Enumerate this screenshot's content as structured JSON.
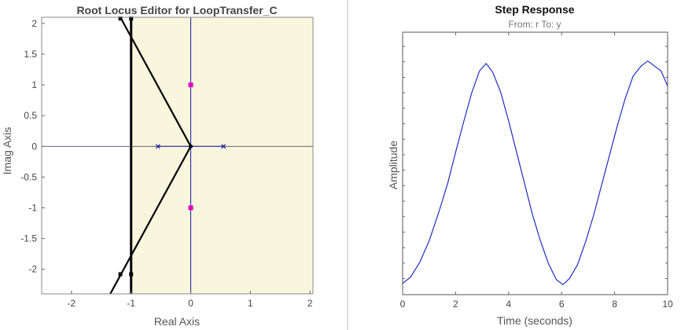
{
  "colors": {
    "pane_fill": "#f8f6dc",
    "locus": "#000000",
    "axis_line": "#1a1aa0",
    "pole_marker": "#1a1aa0",
    "closed_loop_pole": "#e000c0",
    "response_line": "#1f2fbf",
    "divider": "#bbbbbb"
  },
  "root_locus": {
    "title": "Root Locus Editor for LoopTransfer_C",
    "xlabel": "Real Axis",
    "ylabel": "Imag Axis",
    "x_ticks": [
      "-2",
      "-1",
      "0",
      "1",
      "2"
    ],
    "y_ticks": [
      "2",
      "1.5",
      "1",
      "0.5",
      "0",
      "-0.5",
      "-1",
      "-1.5",
      "-2"
    ]
  },
  "step_response": {
    "title": "Step Response",
    "subtitle": "From: r  To: y",
    "xlabel": "Time (seconds)",
    "ylabel": "Amplitude",
    "x_ticks": [
      "0",
      "2",
      "4",
      "6",
      "8",
      "10"
    ]
  },
  "chart_data": [
    {
      "type": "line",
      "title": "Root Locus Editor for LoopTransfer_C",
      "xlabel": "Real Axis",
      "ylabel": "Imag Axis",
      "xlim": [
        -2.5,
        2.05
      ],
      "ylim": [
        -2.4,
        2.1
      ],
      "shaded_region": {
        "x_from": -1,
        "x_to": 2.05,
        "label": ""
      },
      "vertical_constraint_line": {
        "x": -1
      },
      "open_loop_poles": [
        [
          -0.55,
          0
        ],
        [
          0.55,
          0
        ]
      ],
      "closed_loop_poles": [
        [
          0,
          1
        ],
        [
          0,
          -1
        ]
      ],
      "series": [
        {
          "values": [
            [
              -1.18,
              2.1
            ],
            [
              0,
              0
            ],
            [
              -1.35,
              -2.4
            ]
          ]
        },
        {
          "values": [
            [
              -0.55,
              0
            ],
            [
              0.55,
              0
            ]
          ]
        },
        {
          "values": [
            [
              0,
              2.1
            ],
            [
              0,
              -2.4
            ]
          ]
        }
      ],
      "branch_markers": [
        [
          -1.18,
          2.08
        ],
        [
          -1.18,
          -2.08
        ]
      ]
    },
    {
      "type": "line",
      "title": "Step Response",
      "subtitle": "From: r  To: y",
      "xlabel": "Time (seconds)",
      "ylabel": "Amplitude",
      "xlim": [
        0,
        10
      ],
      "x": [
        0,
        0.3,
        0.65,
        1,
        1.35,
        1.7,
        2,
        2.3,
        2.6,
        2.9,
        3.15,
        3.4,
        3.7,
        4.0,
        4.3,
        4.6,
        4.9,
        5.2,
        5.5,
        5.8,
        6.05,
        6.3,
        6.6,
        6.9,
        7.2,
        7.5,
        7.8,
        8.1,
        8.4,
        8.7,
        9.0,
        9.25,
        9.5,
        9.75,
        10.0
      ],
      "values": [
        -0.96,
        -0.91,
        -0.79,
        -0.62,
        -0.4,
        -0.16,
        0.09,
        0.33,
        0.56,
        0.74,
        0.8,
        0.73,
        0.57,
        0.34,
        0.09,
        -0.16,
        -0.41,
        -0.62,
        -0.8,
        -0.93,
        -0.97,
        -0.92,
        -0.81,
        -0.63,
        -0.42,
        -0.18,
        0.06,
        0.3,
        0.52,
        0.7,
        0.78,
        0.82,
        0.78,
        0.74,
        0.62
      ]
    }
  ]
}
